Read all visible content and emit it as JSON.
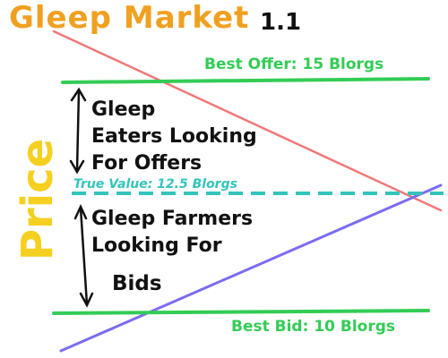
{
  "title": "Gleep Market",
  "version": "1.1",
  "y_axis_label": "Price",
  "levels": {
    "best_offer": "Best Offer: 15 Blorgs",
    "true_value": "True Value: 12.5 Blorgs",
    "best_bid": "Best Bid: 10 Blorgs"
  },
  "annotations": {
    "eaters": [
      "Gleep",
      "Eaters Looking",
      "For Offers"
    ],
    "farmers": [
      "Gleep Farmers",
      "Looking For"
    ],
    "farmers_last": "Bids"
  },
  "colors": {
    "title": "#f0a020",
    "axis_label": "#f5d020",
    "level_lines": "#33cc55",
    "true_value_line": "#33c4bb",
    "offer_curve": "#f07878",
    "bid_curve": "#7b6cf0",
    "arrows": "#111111"
  }
}
